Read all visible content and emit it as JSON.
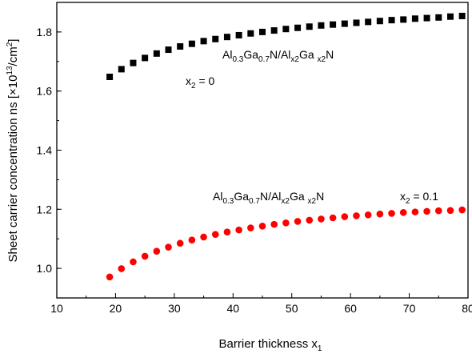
{
  "chart_data": {
    "type": "scatter",
    "xlabel_main": "Barrier thickness x",
    "xlabel_sub": "1",
    "ylabel_main": "Sheet carrier concentration ns [×10",
    "ylabel_sup": "13",
    "ylabel_tail": "/cm",
    "ylabel_sup2": "2",
    "ylabel_close": "]",
    "xlim": [
      10,
      80
    ],
    "ylim": [
      0.9,
      1.9
    ],
    "xticks": [
      "10",
      "20",
      "30",
      "40",
      "50",
      "60",
      "70",
      "80"
    ],
    "yticks": [
      "1.0",
      "1.2",
      "1.4",
      "1.6",
      "1.8"
    ],
    "grid": false,
    "series": [
      {
        "marker": "square",
        "color": "#000000",
        "x": [
          19,
          21,
          23,
          25,
          27,
          29,
          31,
          33,
          35,
          37,
          39,
          41,
          43,
          45,
          47,
          49,
          51,
          53,
          55,
          57,
          59,
          61,
          63,
          65,
          67,
          69,
          71,
          73,
          75,
          77,
          79
        ],
        "y": [
          1.648,
          1.674,
          1.695,
          1.712,
          1.727,
          1.74,
          1.751,
          1.76,
          1.769,
          1.776,
          1.783,
          1.789,
          1.795,
          1.8,
          1.805,
          1.81,
          1.814,
          1.818,
          1.822,
          1.825,
          1.828,
          1.831,
          1.834,
          1.837,
          1.84,
          1.842,
          1.845,
          1.847,
          1.849,
          1.852,
          1.854
        ]
      },
      {
        "marker": "circle",
        "color": "#ff0000",
        "x": [
          19,
          21,
          23,
          25,
          27,
          29,
          31,
          33,
          35,
          37,
          39,
          41,
          43,
          45,
          47,
          49,
          51,
          53,
          55,
          57,
          59,
          61,
          63,
          65,
          67,
          69,
          71,
          73,
          75,
          77,
          79
        ],
        "y": [
          0.971,
          0.999,
          1.022,
          1.041,
          1.058,
          1.072,
          1.085,
          1.096,
          1.106,
          1.115,
          1.123,
          1.13,
          1.137,
          1.143,
          1.149,
          1.154,
          1.159,
          1.163,
          1.167,
          1.171,
          1.175,
          1.178,
          1.181,
          1.184,
          1.186,
          1.189,
          1.191,
          1.193,
          1.195,
          1.196,
          1.198
        ]
      }
    ],
    "annotations": {
      "top_formula": {
        "p1": "Al",
        "s1": "0.3",
        "p2": "Ga",
        "s2": "0.7",
        "p3": "N/Al",
        "s3": "x2",
        "p4": "Ga ",
        "s4": "x2",
        "p5": "N"
      },
      "top_x2": {
        "p1": "x",
        "s1": "2",
        "p2": " = 0"
      },
      "bottom_formula": {
        "p1": "Al",
        "s1": "0.3",
        "p2": "Ga",
        "s2": "0.7",
        "p3": "N/Al",
        "s3": "x2",
        "p4": "Ga ",
        "s4": "x2",
        "p5": "N"
      },
      "bottom_x2": {
        "p1": "x",
        "s1": "2",
        "p2": " = 0.1"
      }
    }
  }
}
